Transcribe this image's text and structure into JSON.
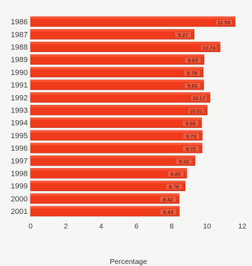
{
  "chart_data": {
    "type": "bar",
    "orientation": "horizontal",
    "categories": [
      "1986",
      "1987",
      "1988",
      "1989",
      "1990",
      "1991",
      "1992",
      "1993",
      "1994",
      "1995",
      "1996",
      "1997",
      "1998",
      "1999",
      "2000",
      "2001"
    ],
    "values": [
      11.59,
      9.27,
      10.74,
      9.83,
      9.78,
      9.81,
      10.17,
      10.01,
      9.69,
      9.73,
      9.72,
      9.32,
      8.85,
      8.76,
      8.42,
      8.43
    ],
    "data_labels": [
      "11.59",
      "9.27",
      "10.74",
      "9.83",
      "9.78",
      "9.81",
      "10.17",
      "10.01",
      "9.69",
      "9.73",
      "9.72",
      "9.32",
      "8.85",
      "8.76",
      "8.42",
      "8.43"
    ],
    "xlabel": "Percentage",
    "ylabel": "",
    "xlim": [
      0,
      12
    ],
    "xticks": [
      "0",
      "2",
      "4",
      "6",
      "8",
      "10",
      "12"
    ],
    "grid": false,
    "legend": "none",
    "colors": {
      "bar": "#f03a1c",
      "bar_edge": "#c42a12",
      "bar_top": "#ff5a38"
    }
  }
}
